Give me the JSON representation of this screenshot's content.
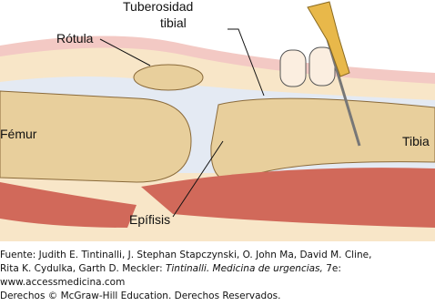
{
  "labels": {
    "tuberosity": [
      "Tuberosidad",
      "tibial"
    ],
    "patella": "Rótula",
    "femur": "Fémur",
    "tibia": "Tibia",
    "epiphysis": "Epífisis"
  },
  "caption": {
    "line1": "Fuente: Judith E. Tintinalli, J. Stephan Stapczynski, O. John Ma, David M. Cline,",
    "line2": [
      "Rita K. Cydulka, Garth D. Meckler: ",
      "Tintinalli. Medicina de urgencias,",
      " 7e:"
    ],
    "line3": "www.accessmedicina.com",
    "line4": "Derechos © McGraw-Hill Education. Derechos Reservados."
  }
}
